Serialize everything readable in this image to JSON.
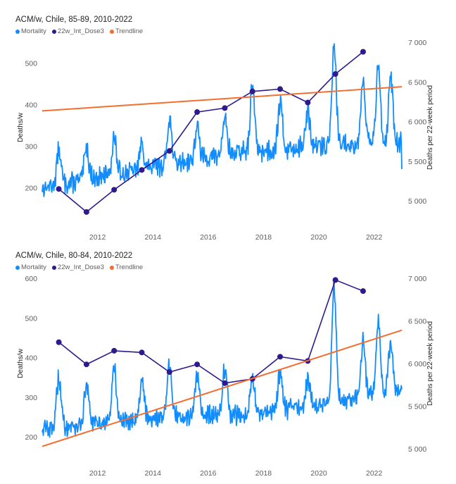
{
  "colors": {
    "mortality": "#118DFF",
    "dose": "#2E1A8C",
    "trend": "#F36E2F"
  },
  "chart_data": [
    {
      "type": "line",
      "title": "ACM/w, Chile, 85-89, 2010-2022",
      "legend": [
        "Mortality",
        "22w_Int_Dose3",
        "Trendline"
      ],
      "legend_position": "top-left",
      "ylabel": "Deaths/w",
      "y2label": "Deaths per 22-week period",
      "xlim": [
        2010.0,
        2023.0
      ],
      "ylim": [
        140,
        550
      ],
      "y2lim": [
        4850,
        7000
      ],
      "xticks": [
        "2012",
        "2014",
        "2016",
        "2018",
        "2020",
        "2022"
      ],
      "yticks": [
        "200",
        "300",
        "400",
        "500"
      ],
      "y2ticks": [
        "5 000",
        "5 500",
        "6 000",
        "6 500",
        "7 000"
      ],
      "series": [
        {
          "name": "Mortality",
          "axis": "left",
          "mode": "weekly",
          "baseline": [
            [
              2010,
              200
            ],
            [
              2014,
              250
            ],
            [
              2017,
              285
            ],
            [
              2020,
              300
            ],
            [
              2023,
              310
            ]
          ],
          "peaks": [
            [
              2010.6,
              290
            ],
            [
              2011.6,
              300
            ],
            [
              2012.6,
              320
            ],
            [
              2013.6,
              305
            ],
            [
              2014.6,
              370
            ],
            [
              2015.6,
              345
            ],
            [
              2016.6,
              370
            ],
            [
              2017.6,
              445
            ],
            [
              2018.6,
              405
            ],
            [
              2019.6,
              380
            ],
            [
              2020.55,
              540
            ],
            [
              2021.6,
              465
            ],
            [
              2022.15,
              490
            ],
            [
              2022.6,
              465
            ]
          ],
          "end_value": 245
        },
        {
          "name": "22w_Int_Dose3",
          "axis": "right",
          "x": [
            2010.6,
            2011.6,
            2012.6,
            2013.6,
            2014.6,
            2015.6,
            2016.6,
            2017.6,
            2018.6,
            2019.6,
            2020.6,
            2021.6
          ],
          "y": [
            5150,
            4860,
            5140,
            5390,
            5630,
            6120,
            6170,
            6380,
            6410,
            6240,
            6600,
            6880
          ]
        },
        {
          "name": "Trendline",
          "axis": "left",
          "x": [
            2010.0,
            2023.0
          ],
          "y": [
            385,
            443
          ]
        }
      ]
    },
    {
      "type": "line",
      "title": "ACM/w, Chile, 80-84, 2010-2022",
      "legend": [
        "Mortality",
        "22w_Int_Dose3",
        "Trendline"
      ],
      "legend_position": "top-left",
      "ylabel": "Deaths/w",
      "y2label": "Deaths per 22-week period",
      "xlim": [
        2010.0,
        2023.0
      ],
      "ylim": [
        170,
        600
      ],
      "y2lim": [
        5000,
        7000
      ],
      "xticks": [
        "2012",
        "2014",
        "2016",
        "2018",
        "2020",
        "2022"
      ],
      "yticks": [
        "200",
        "300",
        "400",
        "500",
        "600"
      ],
      "y2ticks": [
        "5 000",
        "5 500",
        "6 000",
        "6 500",
        "7 000"
      ],
      "series": [
        {
          "name": "Mortality",
          "axis": "left",
          "mode": "weekly",
          "baseline": [
            [
              2010,
              220
            ],
            [
              2014,
              250
            ],
            [
              2017,
              255
            ],
            [
              2020,
              280
            ],
            [
              2023,
              320
            ]
          ],
          "peaks": [
            [
              2010.6,
              350
            ],
            [
              2011.6,
              330
            ],
            [
              2012.6,
              375
            ],
            [
              2013.6,
              345
            ],
            [
              2014.6,
              380
            ],
            [
              2015.6,
              350
            ],
            [
              2016.6,
              375
            ],
            [
              2017.6,
              345
            ],
            [
              2018.6,
              365
            ],
            [
              2019.6,
              345
            ],
            [
              2020.55,
              580
            ],
            [
              2021.6,
              440
            ],
            [
              2022.15,
              490
            ],
            [
              2022.6,
              440
            ]
          ],
          "end_value": 320
        },
        {
          "name": "22w_Int_Dose3",
          "axis": "right",
          "x": [
            2010.6,
            2011.6,
            2012.6,
            2013.6,
            2014.6,
            2015.6,
            2016.6,
            2017.6,
            2018.6,
            2019.6,
            2020.6,
            2021.6
          ],
          "y": [
            6250,
            5990,
            6150,
            6130,
            5900,
            5990,
            5770,
            5820,
            6080,
            6030,
            6980,
            6850
          ]
        },
        {
          "name": "Trendline",
          "axis": "left",
          "x": [
            2010.0,
            2023.0
          ],
          "y": [
            176,
            469
          ]
        }
      ]
    }
  ]
}
